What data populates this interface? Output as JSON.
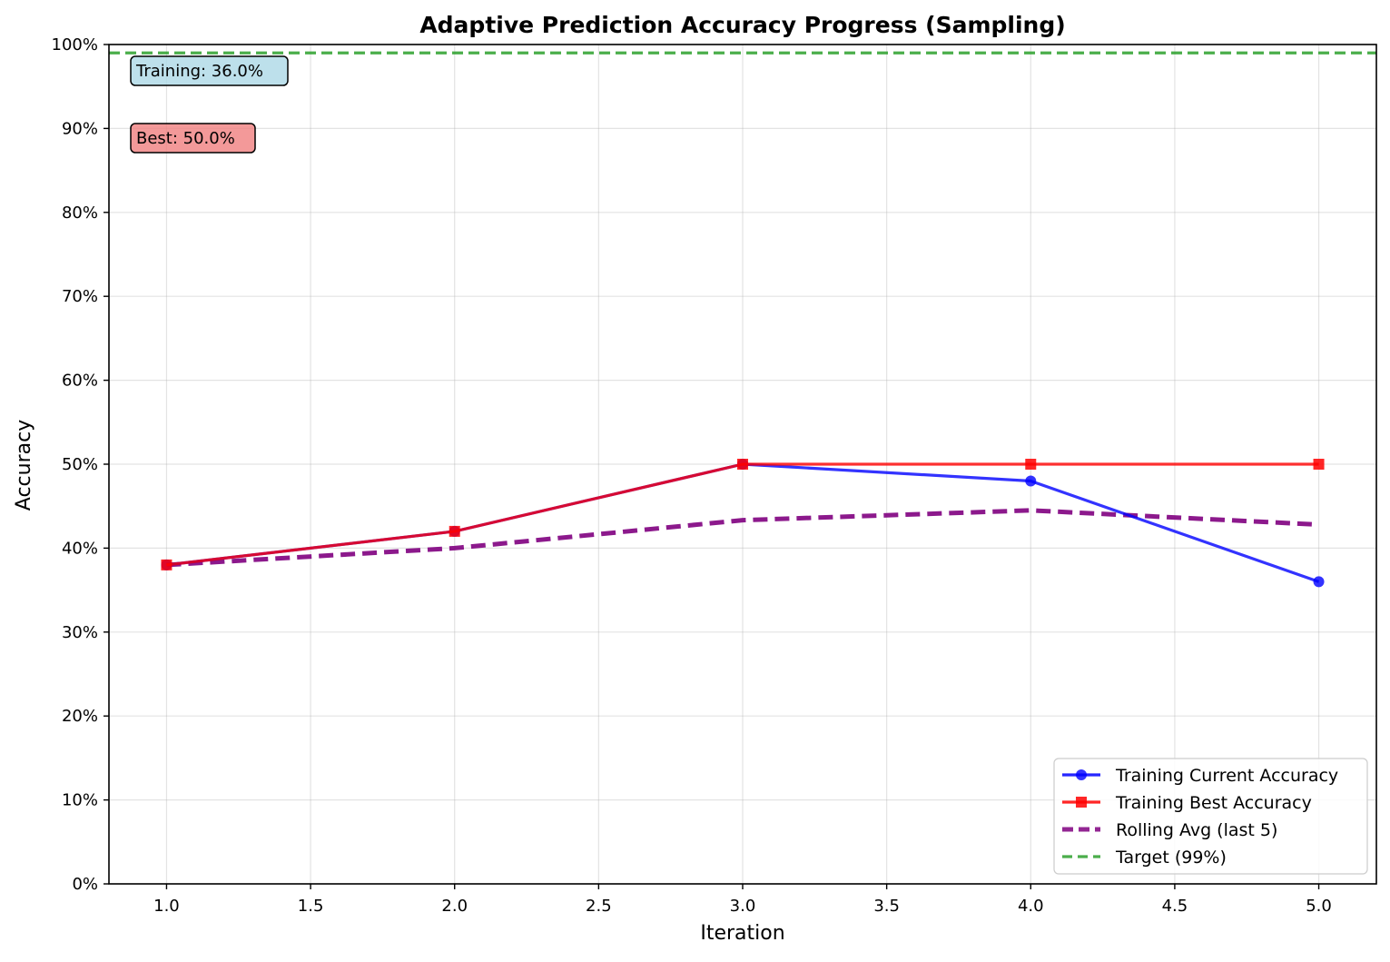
{
  "chart_data": {
    "type": "line",
    "title": "Adaptive Prediction Accuracy Progress (Sampling)",
    "xlabel": "Iteration",
    "ylabel": "Accuracy",
    "x": [
      1.0,
      2.0,
      3.0,
      4.0,
      5.0
    ],
    "xlim": [
      0.8,
      5.2
    ],
    "ylim": [
      0,
      100
    ],
    "xticks": [
      1.0,
      1.5,
      2.0,
      2.5,
      3.0,
      3.5,
      4.0,
      4.5,
      5.0
    ],
    "xtick_labels": [
      "1.0",
      "1.5",
      "2.0",
      "2.5",
      "3.0",
      "3.5",
      "4.0",
      "4.5",
      "5.0"
    ],
    "yticks": [
      0,
      10,
      20,
      30,
      40,
      50,
      60,
      70,
      80,
      90,
      100
    ],
    "ytick_labels": [
      "0%",
      "10%",
      "20%",
      "30%",
      "40%",
      "50%",
      "60%",
      "70%",
      "80%",
      "90%",
      "100%"
    ],
    "grid": true,
    "legend_position": "lower-right",
    "series": [
      {
        "name": "Training Current Accuracy",
        "values": [
          38,
          42,
          50,
          48,
          36
        ],
        "color": "#0000ff",
        "style": "solid",
        "marker": "circle"
      },
      {
        "name": "Training Best Accuracy",
        "values": [
          38,
          42,
          50,
          50,
          50
        ],
        "color": "#ff0000",
        "style": "solid",
        "marker": "square"
      },
      {
        "name": "Rolling Avg (last 5)",
        "values": [
          38.0,
          40.0,
          43.33,
          44.5,
          42.8
        ],
        "color": "#800080",
        "style": "dashed",
        "marker": "none"
      },
      {
        "name": "Target (99%)",
        "hline": 99,
        "color": "#2ca02c",
        "style": "dashed",
        "marker": "none"
      }
    ],
    "annotations": [
      {
        "text": "Training: 36.0%",
        "bg": "#add8e6"
      },
      {
        "text": "Best: 50.0%",
        "bg": "#f08080"
      }
    ]
  }
}
